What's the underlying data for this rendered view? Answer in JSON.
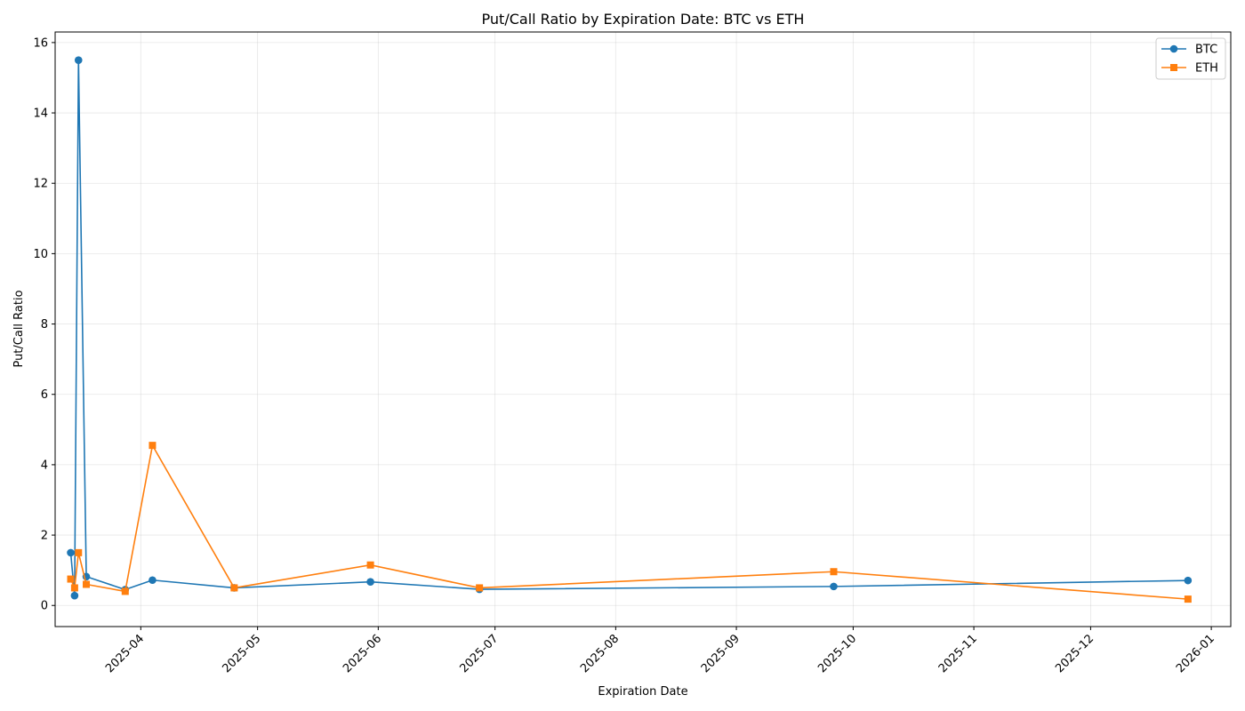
{
  "chart_data": {
    "type": "line",
    "title": "Put/Call Ratio by Expiration Date: BTC vs ETH",
    "xlabel": "Expiration Date",
    "ylabel": "Put/Call Ratio",
    "x_type": "date",
    "xlim": [
      "2025-03-10",
      "2026-01-06"
    ],
    "ylim": [
      -0.6,
      16.3
    ],
    "grid": true,
    "legend_position": "top-right",
    "x_ticks": [
      "2025-04",
      "2025-05",
      "2025-06",
      "2025-07",
      "2025-08",
      "2025-09",
      "2025-10",
      "2025-11",
      "2025-12",
      "2026-01"
    ],
    "y_ticks": [
      0,
      2,
      4,
      6,
      8,
      10,
      12,
      14,
      16
    ],
    "series": [
      {
        "name": "BTC",
        "color": "#1f77b4",
        "marker": "circle",
        "points": [
          {
            "x": "2025-03-14",
            "y": 1.5
          },
          {
            "x": "2025-03-15",
            "y": 0.28
          },
          {
            "x": "2025-03-16",
            "y": 15.5
          },
          {
            "x": "2025-03-18",
            "y": 0.82
          },
          {
            "x": "2025-03-28",
            "y": 0.45
          },
          {
            "x": "2025-04-04",
            "y": 0.72
          },
          {
            "x": "2025-04-25",
            "y": 0.5
          },
          {
            "x": "2025-05-30",
            "y": 0.67
          },
          {
            "x": "2025-06-27",
            "y": 0.46
          },
          {
            "x": "2025-09-26",
            "y": 0.54
          },
          {
            "x": "2025-12-26",
            "y": 0.71
          }
        ]
      },
      {
        "name": "ETH",
        "color": "#ff7f0e",
        "marker": "square",
        "points": [
          {
            "x": "2025-03-14",
            "y": 0.75
          },
          {
            "x": "2025-03-15",
            "y": 0.5
          },
          {
            "x": "2025-03-16",
            "y": 1.5
          },
          {
            "x": "2025-03-18",
            "y": 0.6
          },
          {
            "x": "2025-03-28",
            "y": 0.4
          },
          {
            "x": "2025-04-04",
            "y": 4.55
          },
          {
            "x": "2025-04-25",
            "y": 0.5
          },
          {
            "x": "2025-05-30",
            "y": 1.15
          },
          {
            "x": "2025-06-27",
            "y": 0.5
          },
          {
            "x": "2025-09-26",
            "y": 0.96
          },
          {
            "x": "2025-12-26",
            "y": 0.18
          }
        ]
      }
    ]
  }
}
